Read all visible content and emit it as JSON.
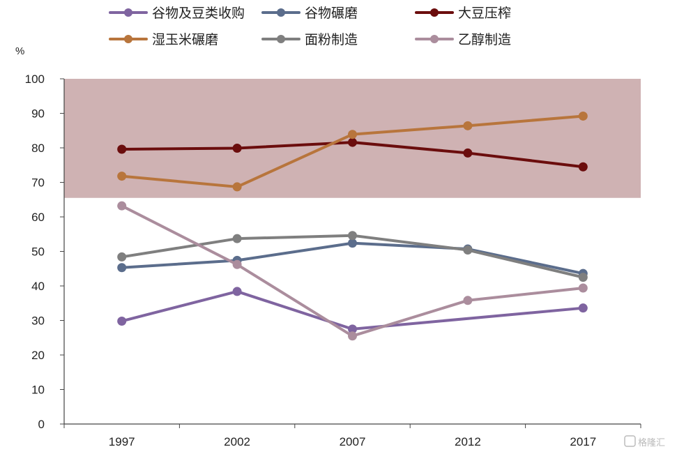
{
  "chart_data": {
    "type": "line",
    "unit_label": "%",
    "categories": [
      "1997",
      "2002",
      "2007",
      "2012",
      "2017"
    ],
    "ylim": [
      0,
      100
    ],
    "yticks": [
      0,
      10,
      20,
      30,
      40,
      50,
      60,
      70,
      80,
      90,
      100
    ],
    "highlight_band": {
      "from": 65.5,
      "to": 100,
      "color": "#cfb2b3"
    },
    "legend_position": "top",
    "series": [
      {
        "name": "谷物及豆类收购",
        "color": "#7f64a0",
        "values": [
          29.8,
          38.4,
          27.5,
          null,
          33.6
        ]
      },
      {
        "name": "谷物碾磨",
        "color": "#5b6d8c",
        "values": [
          45.3,
          47.4,
          52.4,
          50.7,
          43.6
        ]
      },
      {
        "name": "大豆压榨",
        "color": "#6b0d0d",
        "values": [
          79.6,
          79.9,
          81.6,
          78.5,
          74.5
        ]
      },
      {
        "name": "湿玉米碾磨",
        "color": "#b8753c",
        "values": [
          71.8,
          68.7,
          83.9,
          86.4,
          89.2
        ]
      },
      {
        "name": "面粉制造",
        "color": "#7f7f7f",
        "values": [
          48.4,
          53.7,
          54.6,
          50.4,
          42.5
        ]
      },
      {
        "name": "乙醇制造",
        "color": "#ab8d9d",
        "values": [
          63.2,
          46.2,
          25.5,
          35.8,
          39.4
        ]
      }
    ]
  },
  "watermark": "格隆汇"
}
